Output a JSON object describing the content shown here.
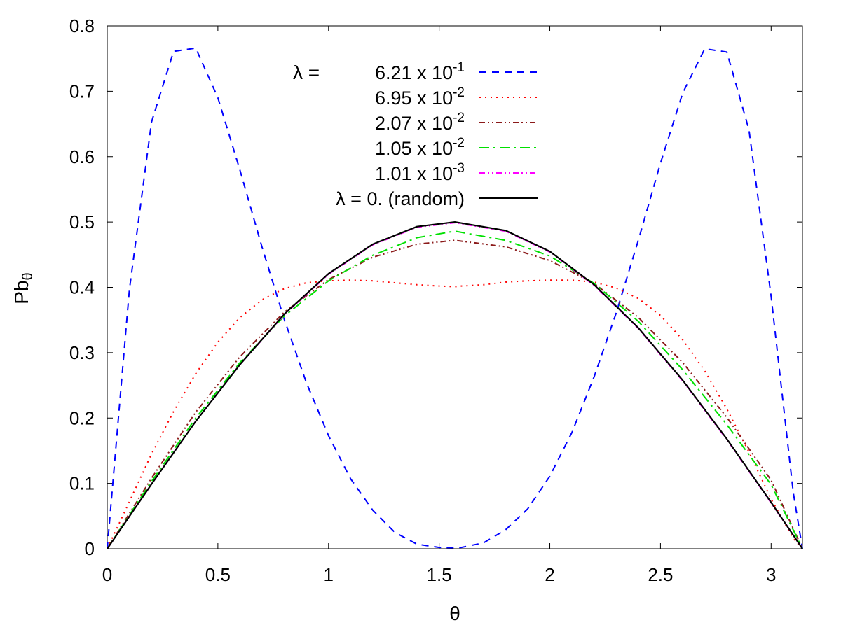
{
  "chart_data": {
    "type": "line",
    "xlabel": "θ",
    "ylabel": "Pb",
    "ylabel_sub": "θ",
    "xlim": [
      0,
      3.14159
    ],
    "ylim": [
      0,
      0.8
    ],
    "xticks": [
      0,
      0.5,
      1,
      1.5,
      2,
      2.5,
      3
    ],
    "xtick_labels": [
      "0",
      "0.5",
      "1",
      "1.5",
      "2",
      "2.5",
      "3"
    ],
    "yticks": [
      0,
      0.1,
      0.2,
      0.3,
      0.4,
      0.5,
      0.6,
      0.7,
      0.8
    ],
    "ytick_labels": [
      "0",
      "0.1",
      "0.2",
      "0.3",
      "0.4",
      "0.5",
      "0.6",
      "0.7",
      "0.8"
    ],
    "grid": false,
    "legend_position": "top-center",
    "legend_prefix": "λ  =",
    "series": [
      {
        "name": "6.21 x 10",
        "exponent": "-1",
        "color": "#0000ff",
        "dash": "dashed",
        "x": [
          0,
          0.1,
          0.2,
          0.3,
          0.4,
          0.5,
          0.6,
          0.7,
          0.8,
          0.9,
          1.0,
          1.1,
          1.2,
          1.3,
          1.4,
          1.5,
          1.5708,
          1.6,
          1.7,
          1.8,
          1.9,
          2.0,
          2.1,
          2.2,
          2.3,
          2.4,
          2.5,
          2.6,
          2.7,
          2.8,
          2.9,
          3.0,
          3.1,
          3.1416
        ],
        "values": [
          0,
          0.396,
          0.653,
          0.761,
          0.766,
          0.69,
          0.579,
          0.461,
          0.351,
          0.254,
          0.173,
          0.107,
          0.059,
          0.025,
          0.007,
          0.002,
          0.0015,
          0.002,
          0.009,
          0.029,
          0.061,
          0.111,
          0.178,
          0.263,
          0.361,
          0.472,
          0.59,
          0.697,
          0.765,
          0.76,
          0.641,
          0.386,
          0.086,
          0
        ]
      },
      {
        "name": "6.95 x 10",
        "exponent": "-2",
        "color": "#ff0000",
        "dash": "dotted",
        "x": [
          0,
          0.1,
          0.2,
          0.3,
          0.4,
          0.5,
          0.6,
          0.7,
          0.8,
          0.9,
          1.0,
          1.1,
          1.2,
          1.3,
          1.4,
          1.5,
          1.5708,
          1.6,
          1.7,
          1.8,
          1.9,
          2.0,
          2.1,
          2.2,
          2.3,
          2.4,
          2.5,
          2.6,
          2.7,
          2.8,
          2.9,
          3.0,
          3.1,
          3.1416
        ],
        "values": [
          0,
          0.072,
          0.145,
          0.21,
          0.268,
          0.316,
          0.354,
          0.381,
          0.398,
          0.407,
          0.41,
          0.411,
          0.41,
          0.407,
          0.404,
          0.402,
          0.401,
          0.402,
          0.404,
          0.408,
          0.41,
          0.411,
          0.411,
          0.408,
          0.399,
          0.383,
          0.357,
          0.32,
          0.272,
          0.214,
          0.148,
          0.076,
          0.016,
          0
        ]
      },
      {
        "name": "2.07 x 10",
        "exponent": "-2",
        "color": "#8b1a1a",
        "dash": "dash-dot-dot",
        "x": [
          0,
          0.2,
          0.4,
          0.6,
          0.8,
          1.0,
          1.2,
          1.4,
          1.5708,
          1.8,
          2.0,
          2.2,
          2.4,
          2.6,
          2.8,
          3.0,
          3.1416
        ],
        "values": [
          0,
          0.108,
          0.209,
          0.294,
          0.362,
          0.412,
          0.446,
          0.466,
          0.472,
          0.462,
          0.441,
          0.406,
          0.354,
          0.285,
          0.201,
          0.105,
          0
        ]
      },
      {
        "name": "1.05 x 10",
        "exponent": "-2",
        "color": "#00e000",
        "dash": "dash-dot",
        "x": [
          0,
          0.2,
          0.4,
          0.6,
          0.8,
          1.0,
          1.2,
          1.4,
          1.5708,
          1.8,
          2.0,
          2.2,
          2.4,
          2.6,
          2.8,
          3.0,
          3.1416
        ],
        "values": [
          0,
          0.103,
          0.2,
          0.285,
          0.356,
          0.41,
          0.449,
          0.476,
          0.486,
          0.472,
          0.448,
          0.406,
          0.348,
          0.274,
          0.19,
          0.098,
          0
        ]
      },
      {
        "name": "1.01 x 10",
        "exponent": "-3",
        "color": "#ff00ff",
        "dash": "dash-dot-dot",
        "x": [
          0,
          0.2,
          0.4,
          0.6,
          0.8,
          1.0,
          1.2,
          1.4,
          1.5708,
          1.8,
          2.0,
          2.2,
          2.4,
          2.6,
          2.8,
          3.0,
          3.1416
        ],
        "values": [
          0,
          0.099,
          0.195,
          0.282,
          0.358,
          0.42,
          0.465,
          0.492,
          0.499,
          0.486,
          0.454,
          0.403,
          0.337,
          0.257,
          0.167,
          0.07,
          0
        ]
      },
      {
        "name": "λ = 0.   (random)",
        "exponent": "",
        "color": "#000000",
        "dash": "solid",
        "x": [
          0,
          0.2,
          0.4,
          0.6,
          0.8,
          1.0,
          1.2,
          1.4,
          1.5708,
          1.8,
          2.0,
          2.2,
          2.4,
          2.6,
          2.8,
          3.0,
          3.1416
        ],
        "values": [
          0,
          0.099,
          0.195,
          0.282,
          0.359,
          0.421,
          0.466,
          0.493,
          0.5,
          0.487,
          0.455,
          0.404,
          0.338,
          0.258,
          0.168,
          0.071,
          0
        ]
      }
    ]
  }
}
